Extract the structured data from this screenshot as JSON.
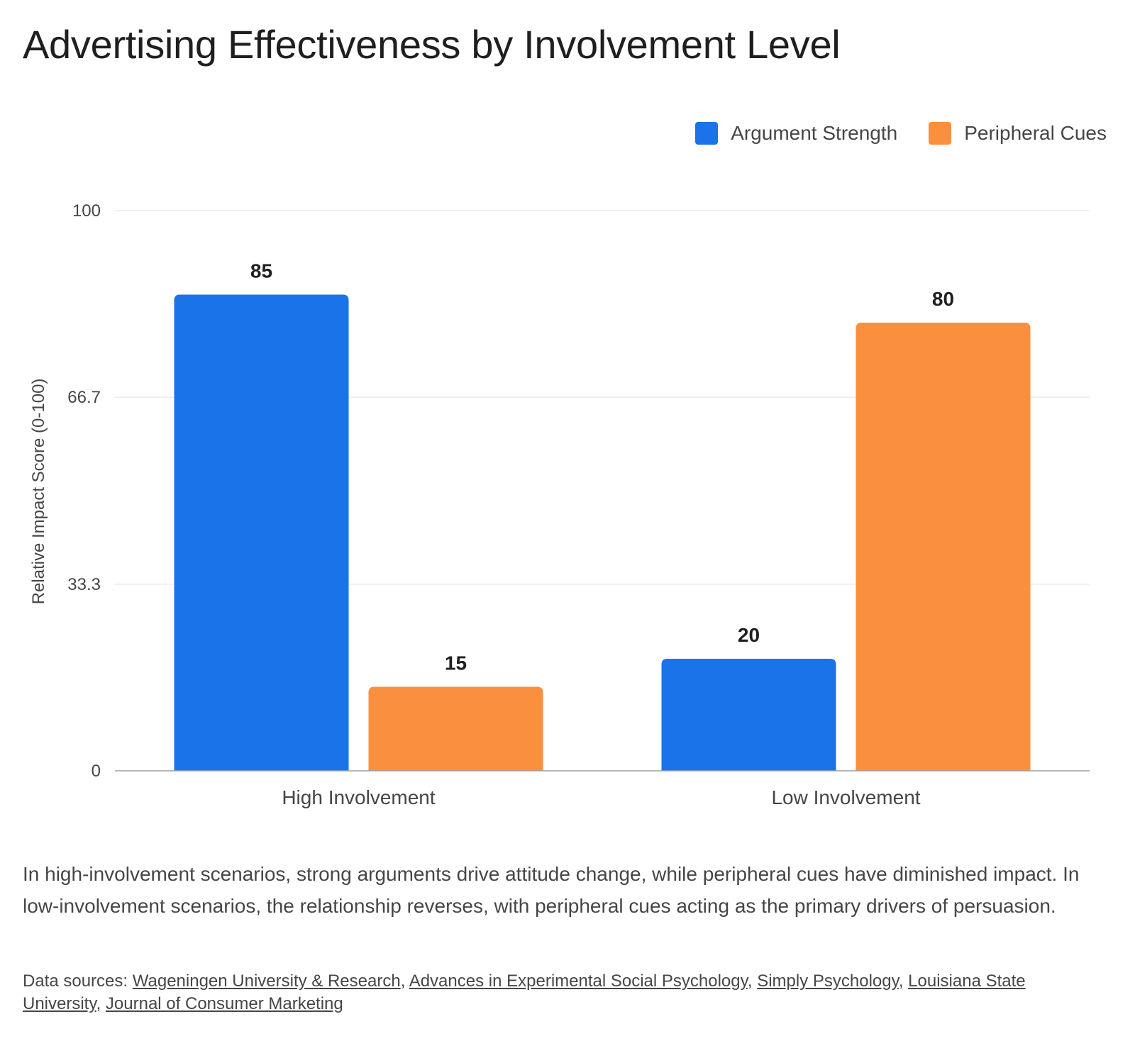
{
  "chart_data": {
    "type": "bar",
    "title": "Advertising Effectiveness by Involvement Level",
    "ylabel": "Relative Impact Score (0-100)",
    "xlabel": "",
    "categories": [
      "High Involvement",
      "Low Involvement"
    ],
    "series": [
      {
        "name": "Argument Strength",
        "values": [
          85,
          20
        ],
        "color": "#1a73e8"
      },
      {
        "name": "Peripheral Cues",
        "values": [
          15,
          80
        ],
        "color": "#fa903e"
      }
    ],
    "ylim": [
      0,
      100
    ],
    "yticks": [
      0,
      33.3,
      66.7,
      100
    ],
    "ytick_labels": [
      "0",
      "33.3",
      "66.7",
      "100"
    ],
    "grid": true,
    "legend_position": "top-right"
  },
  "note": "In high-involvement scenarios, strong arguments drive attitude change, while peripheral cues have diminished impact. In low-involvement scenarios, the relationship reverses, with peripheral cues acting as the primary drivers of persuasion.",
  "sources": {
    "prefix": "Data sources: ",
    "links": [
      "Wageningen University & Research",
      "Advances in Experimental Social Psychology",
      "Simply Psychology",
      "Louisiana State University",
      "Journal of Consumer Marketing"
    ]
  }
}
